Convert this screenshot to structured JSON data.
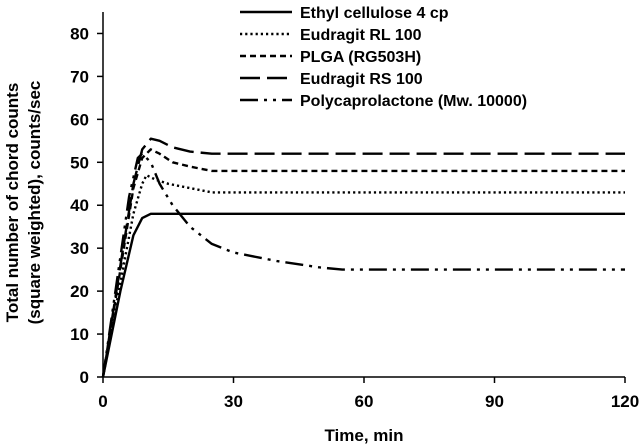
{
  "chart_data": {
    "type": "line",
    "xlabel": "Time, min",
    "ylabel_lines": [
      "Total number of chord counts",
      "(square weighted), counts/sec"
    ],
    "xlim": [
      0,
      120
    ],
    "ylim": [
      0,
      85
    ],
    "xticks": [
      0,
      30,
      60,
      90,
      120
    ],
    "yticks": [
      0,
      10,
      20,
      30,
      40,
      50,
      60,
      70,
      80
    ],
    "grid": false,
    "legend_position": "top-right",
    "series": [
      {
        "name": "Ethyl cellulose 4 cp",
        "style": "solid",
        "x": [
          0,
          4,
          7,
          9,
          11,
          14,
          20,
          30,
          60,
          90,
          120
        ],
        "y": [
          0,
          20,
          33,
          37,
          38,
          38,
          38,
          38,
          38,
          38,
          38
        ]
      },
      {
        "name": "Eudragit RL 100",
        "style": "dotted",
        "x": [
          0,
          4,
          7,
          9,
          10,
          12,
          15,
          20,
          25,
          30,
          60,
          90,
          120
        ],
        "y": [
          0,
          22,
          38,
          45,
          47,
          46,
          45,
          44,
          43,
          43,
          43,
          43,
          43
        ]
      },
      {
        "name": "PLGA (RG503H)",
        "style": "dashed",
        "x": [
          0,
          4,
          7,
          9,
          11,
          13,
          16,
          20,
          25,
          30,
          60,
          90,
          120
        ],
        "y": [
          0,
          25,
          44,
          51,
          53,
          52,
          50,
          49,
          48,
          48,
          48,
          48,
          48
        ]
      },
      {
        "name": "Eudragit RS 100",
        "style": "long-dash",
        "x": [
          0,
          4,
          7,
          9,
          11,
          13,
          16,
          20,
          25,
          30,
          60,
          90,
          120
        ],
        "y": [
          0,
          26,
          45,
          53,
          55.5,
          55,
          53.5,
          52.5,
          52,
          52,
          52,
          52,
          52
        ]
      },
      {
        "name": "Polycaprolactone (Mw. 10000)",
        "style": "dash-dot-dot",
        "x": [
          0,
          4,
          6,
          8,
          9,
          11,
          13,
          16,
          20,
          25,
          30,
          40,
          50,
          55,
          60,
          90,
          120
        ],
        "y": [
          0,
          28,
          42,
          51,
          52,
          50,
          45,
          40,
          35,
          31,
          29,
          27,
          25.5,
          25,
          25,
          25,
          25
        ]
      }
    ]
  }
}
